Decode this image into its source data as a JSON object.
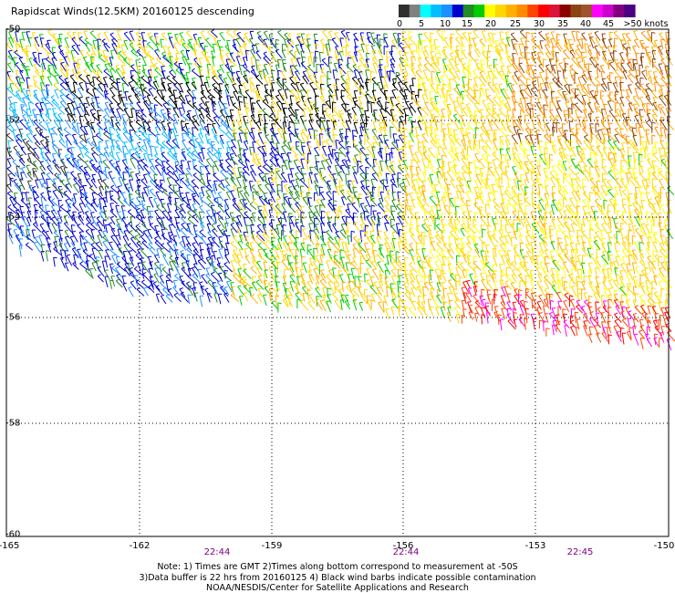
{
  "title": "Rapidscat Winds(12.5KM) 20160125 descending",
  "latitude_labels": [
    "-50",
    "-52",
    "-54",
    "-56",
    "-58",
    "-60"
  ],
  "longitude_labels": [
    "-165",
    "-162",
    "-159",
    "-156",
    "-153",
    "-150"
  ],
  "time_labels": [
    "22:44",
    "22:44",
    "22:45"
  ],
  "legend": {
    "labels": [
      "0",
      "5",
      "10",
      "15",
      "20",
      "25",
      "30",
      "35",
      "40",
      "45",
      ">50 knots"
    ],
    "colors": [
      "#303030",
      "#808080",
      "#00ffff",
      "#00bfff",
      "#1e90ff",
      "#0000cd",
      "#228b22",
      "#00cd00",
      "#ffff00",
      "#ffd700",
      "#ffb000",
      "#ff8c00",
      "#ff4500",
      "#ff0000",
      "#dc143c",
      "#8b0000",
      "#8b4513",
      "#a0522d",
      "#ff00ff",
      "#cc00cc",
      "#800080",
      "#4b0082"
    ]
  },
  "notes": [
    "Note: 1) Times are GMT 2)Times along bottom correspond to measurement at -50S",
    "3)Data buffer is 22 hrs from 20160125 4) Black wind barbs indicate possible contamination",
    "NOAA/NESDIS/Center for Satellite Applications and Research"
  ],
  "colors": {
    "grid": "#000000",
    "time_text": "#800080",
    "contamination_barb": "#000000"
  }
}
